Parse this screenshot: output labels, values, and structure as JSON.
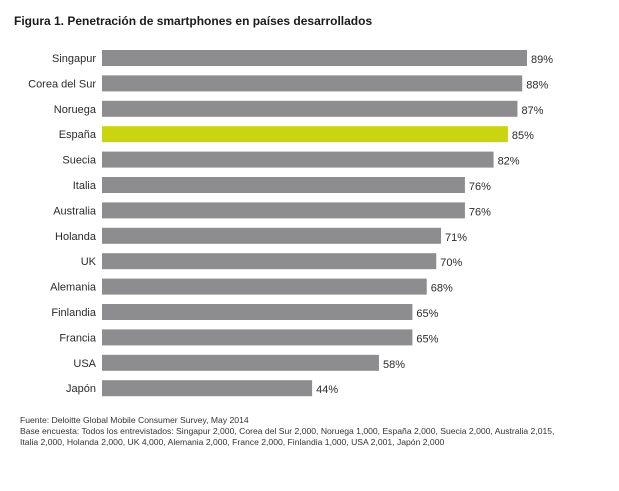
{
  "figure": {
    "title": "Figura 1. Penetración de smartphones en países desarrollados"
  },
  "chart_data": {
    "type": "bar",
    "orientation": "horizontal",
    "title": "Figura 1. Penetración de smartphones en países desarrollados",
    "xlabel": "",
    "ylabel": "",
    "unit": "%",
    "xlim": [
      0,
      89
    ],
    "categories": [
      "Singapur",
      "Corea del Sur",
      "Noruega",
      "España",
      "Suecia",
      "Italia",
      "Australia",
      "Holanda",
      "UK",
      "Alemania",
      "Finlandia",
      "Francia",
      "USA",
      "Japón"
    ],
    "values": [
      89,
      88,
      87,
      85,
      82,
      76,
      76,
      71,
      70,
      68,
      65,
      65,
      58,
      44
    ],
    "value_labels": [
      "89%",
      "88%",
      "87%",
      "85%",
      "82%",
      "76%",
      "76%",
      "71%",
      "70%",
      "68%",
      "65%",
      "65%",
      "58%",
      "44%"
    ],
    "highlight": "España",
    "colors": {
      "bar": "#8d8c8e",
      "highlight": "#cbd50f"
    }
  },
  "footer": {
    "source": "Fuente: Deloitte Global Mobile Consumer Survey, May 2014",
    "base_line1": "Base encuesta: Todos los entrevistados: Singapur 2,000, Corea del Sur 2,000, Noruega  1,000, España 2,000, Suecia 2,000, Australia 2,015,",
    "base_line2": "Italia 2,000, Holanda 2,000, UK 4,000, Alemania 2,000, France 2,000, Finlandia 1,000, USA 2,001, Japón 2,000"
  }
}
